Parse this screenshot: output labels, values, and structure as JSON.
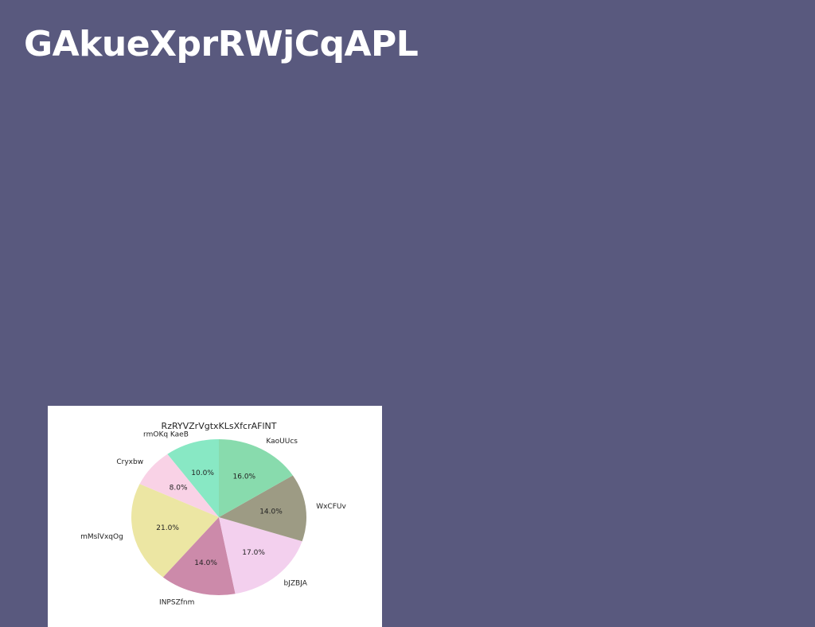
{
  "page": {
    "title": "GAkueXprRWjCqAPL"
  },
  "chart_data": {
    "type": "pie",
    "title": "RzRYVZrVgtxKLsXfcrAFlNT",
    "start": "top, counter-clockwise",
    "slices": [
      {
        "label": "rmOKq KaeB",
        "value": 10.0,
        "pct_label": "10.0%",
        "color": "#88e8c4"
      },
      {
        "label": "Cryxbw",
        "value": 8.0,
        "pct_label": "8.0%",
        "color": "#f9d2e6"
      },
      {
        "label": "mMslVxqOg",
        "value": 21.0,
        "pct_label": "21.0%",
        "color": "#ece6a3"
      },
      {
        "label": "INPSZfnm",
        "value": 14.0,
        "pct_label": "14.0%",
        "color": "#cc8aaa"
      },
      {
        "label": "bJZBJA",
        "value": 17.0,
        "pct_label": "17.0%",
        "color": "#f3d0ee"
      },
      {
        "label": "WxCFUv",
        "value": 14.0,
        "pct_label": "14.0%",
        "color": "#9d9b84"
      },
      {
        "label": "KaoUUcs",
        "value": 16.0,
        "pct_label": "16.0%",
        "color": "#88dbad"
      }
    ]
  }
}
